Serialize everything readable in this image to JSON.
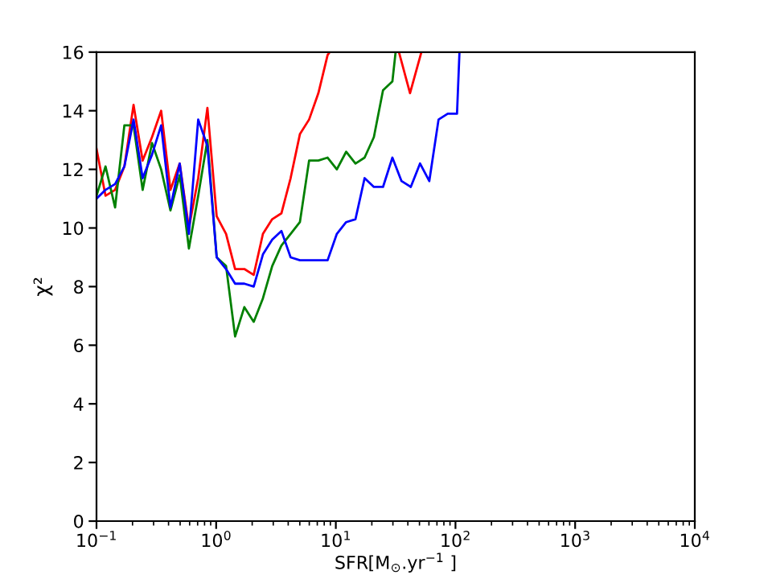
{
  "chart_data": {
    "type": "line",
    "xlabel": "SFR[M$_{⊙}$.yr$^{−1}$ ]",
    "ylabel": "χ²",
    "log": "x",
    "grid": false,
    "legend": false,
    "marker": "none",
    "line_style": "solid",
    "xlim": [
      0.1,
      10000
    ],
    "ylim": [
      0,
      16
    ],
    "xticks": [
      {
        "value": 0.1,
        "label": "10$^{−1}$"
      },
      {
        "value": 1,
        "label": "10$^{0}$"
      },
      {
        "value": 10,
        "label": "10$^{1}$"
      },
      {
        "value": 100,
        "label": "10$^{2}$"
      },
      {
        "value": 1000,
        "label": "10$^{3}$"
      },
      {
        "value": 10000,
        "label": "10$^{4}$"
      }
    ],
    "yticks": [
      0,
      2,
      4,
      6,
      8,
      10,
      12,
      14,
      16
    ],
    "series": [
      {
        "color": "#ff0000",
        "x": [
          0.1,
          0.119,
          0.143,
          0.171,
          0.204,
          0.243,
          0.291,
          0.347,
          0.415,
          0.496,
          0.592,
          0.708,
          0.845,
          1.01,
          1.21,
          1.44,
          1.72,
          2.06,
          2.46,
          2.94,
          3.51,
          4.19,
          5.01,
          5.98,
          7.15,
          8.54,
          8.9,
          20,
          33.7,
          41.7,
          51.9
        ],
        "values": [
          12.7,
          11.1,
          11.3,
          12.1,
          14.2,
          12.3,
          13.1,
          14.0,
          11.3,
          12.2,
          10.0,
          11.7,
          14.1,
          10.4,
          9.8,
          8.6,
          8.6,
          8.4,
          9.8,
          10.3,
          10.5,
          11.7,
          13.2,
          13.7,
          14.6,
          15.9,
          16,
          null,
          16,
          14.6,
          16
        ]
      },
      {
        "color": "#008000",
        "x": [
          0.1,
          0.119,
          0.143,
          0.171,
          0.204,
          0.243,
          0.291,
          0.347,
          0.415,
          0.496,
          0.592,
          0.708,
          0.845,
          1.01,
          1.21,
          1.44,
          1.72,
          2.06,
          2.46,
          2.94,
          3.51,
          4.19,
          5.01,
          5.98,
          7.15,
          8.54,
          10.2,
          12.2,
          14.6,
          17.4,
          20.8,
          24.8,
          29.7,
          31.6
        ],
        "values": [
          11.1,
          12.1,
          10.7,
          13.5,
          13.5,
          11.3,
          12.9,
          12.0,
          10.6,
          11.8,
          9.3,
          11.1,
          13.0,
          9.0,
          8.7,
          6.3,
          7.3,
          6.8,
          7.6,
          8.7,
          9.4,
          9.8,
          10.2,
          12.3,
          12.3,
          12.4,
          12.0,
          12.6,
          12.2,
          12.4,
          13.1,
          14.7,
          15.0,
          16
        ]
      },
      {
        "color": "#0000ff",
        "x": [
          0.1,
          0.119,
          0.143,
          0.171,
          0.204,
          0.243,
          0.291,
          0.347,
          0.415,
          0.496,
          0.592,
          0.708,
          0.845,
          1.01,
          1.21,
          1.44,
          1.72,
          2.06,
          2.46,
          2.94,
          3.51,
          4.19,
          5.01,
          5.98,
          7.15,
          8.54,
          10.2,
          12.2,
          14.6,
          17.4,
          20.8,
          24.8,
          29.7,
          35.4,
          42.3,
          50.6,
          60.4,
          72.2,
          86.2,
          103,
          108
        ],
        "values": [
          11.0,
          11.3,
          11.5,
          12.1,
          13.7,
          11.7,
          12.5,
          13.5,
          10.7,
          12.2,
          9.8,
          13.7,
          12.8,
          9.0,
          8.6,
          8.1,
          8.1,
          8.0,
          9.1,
          9.6,
          9.9,
          9.0,
          8.9,
          8.9,
          8.9,
          8.9,
          9.8,
          10.2,
          10.3,
          11.7,
          11.4,
          11.4,
          12.4,
          11.6,
          11.4,
          12.2,
          11.6,
          13.7,
          13.9,
          13.9,
          16
        ]
      }
    ]
  }
}
